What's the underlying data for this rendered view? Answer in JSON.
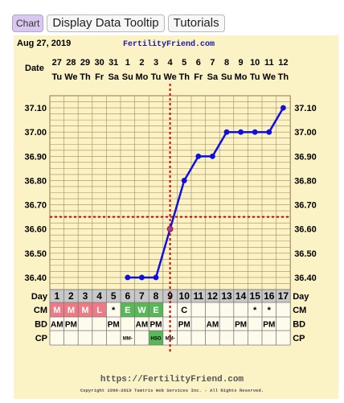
{
  "toolbar": {
    "chart_tab": "Chart",
    "tooltip_tab": "Display Data Tooltip",
    "tutorials_tab": "Tutorials"
  },
  "header": {
    "date": "Aug 27, 2019",
    "site": "FertilityFriend.com"
  },
  "footer": {
    "url": "https://FertilityFriend.com",
    "copyright": "Copyright 1998-2019 Tamtris Web Services Inc. - All Rights Reserved."
  },
  "colors": {
    "temp_line": "#1010dd",
    "coverline": "#cc0000",
    "ovulation_line": "#dd0000",
    "menstruation": "#ee7a86",
    "eggwhite": "#58b858",
    "hso": "#58b858"
  },
  "rows": {
    "date_label": "Date",
    "day_label": "Day",
    "cm_label": "CM",
    "bd_label": "BD",
    "cp_label": "CP",
    "dates": [
      "27",
      "28",
      "29",
      "30",
      "31",
      "1",
      "2",
      "3",
      "4",
      "5",
      "6",
      "7",
      "8",
      "9",
      "10",
      "11",
      "12"
    ],
    "weekdays": [
      "Tu",
      "We",
      "Th",
      "Fr",
      "Sa",
      "Su",
      "Mo",
      "Tu",
      "We",
      "Th",
      "Fr",
      "Sa",
      "Su",
      "Mo",
      "Tu",
      "We",
      "Th"
    ],
    "days": [
      "1",
      "2",
      "3",
      "4",
      "5",
      "6",
      "7",
      "8",
      "9",
      "10",
      "11",
      "12",
      "13",
      "14",
      "15",
      "16",
      "17"
    ],
    "cm": [
      "M",
      "M",
      "M",
      "L",
      "*",
      "E",
      "W",
      "E",
      "",
      "C",
      "",
      "",
      "",
      "",
      "*",
      "*",
      ""
    ],
    "bd": [
      "AM",
      "PM",
      "",
      "",
      "PM",
      "",
      "AM",
      "PM",
      "",
      "PM",
      "",
      "AM",
      "",
      "PM",
      "",
      "PM",
      ""
    ],
    "cp": [
      "",
      "",
      "",
      "",
      "",
      "MM-",
      "",
      "HSO",
      "MM-",
      "",
      "",
      "",
      "",
      "",
      "",
      "",
      ""
    ]
  },
  "chart_data": {
    "type": "line",
    "title": "",
    "xlabel": "Day",
    "ylabel": "",
    "x": [
      1,
      2,
      3,
      4,
      5,
      6,
      7,
      8,
      9,
      10,
      11,
      12,
      13,
      14,
      15,
      16,
      17
    ],
    "series": [
      {
        "values": [
          null,
          null,
          null,
          null,
          null,
          36.4,
          36.4,
          36.4,
          36.6,
          36.8,
          36.9,
          36.9,
          37.0,
          37.0,
          37.0,
          37.0,
          37.1
        ]
      }
    ],
    "y_ticks": [
      "36.40",
      "36.50",
      "36.60",
      "36.70",
      "36.80",
      "36.90",
      "37.00",
      "37.10"
    ],
    "ylim": [
      36.35,
      37.15
    ],
    "coverline": 36.65,
    "ovulation_day": 9,
    "grid": true
  }
}
